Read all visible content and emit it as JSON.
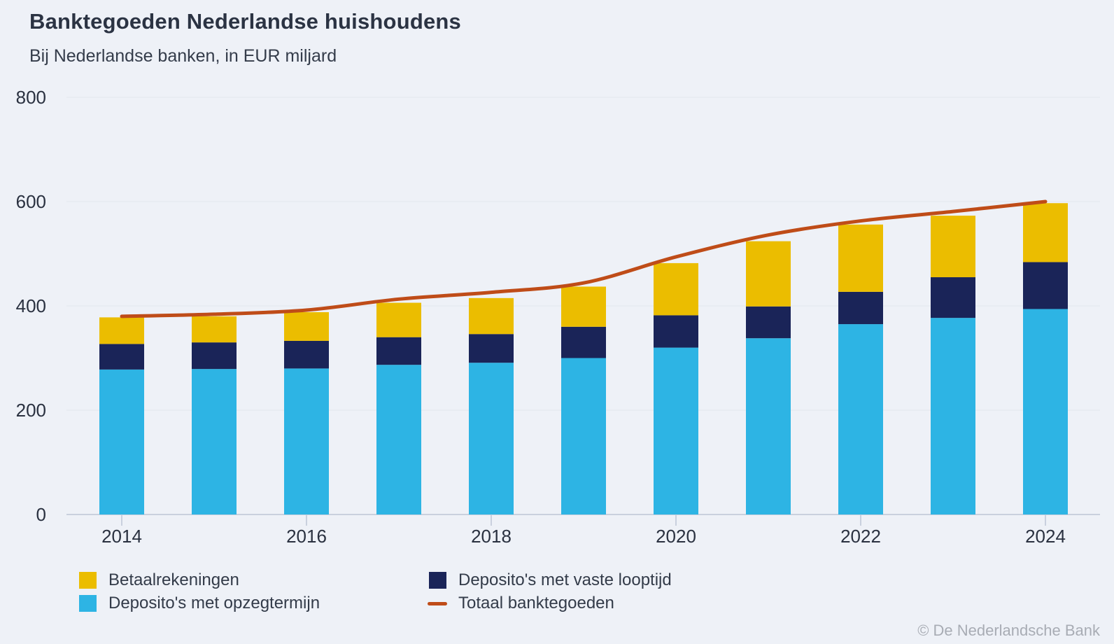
{
  "header": {
    "title": "Banktegoeden Nederlandse huishoudens",
    "subtitle": "Bij Nederlandse banken, in EUR miljard"
  },
  "footer": {
    "copyright": "© De Nederlandsche Bank"
  },
  "theme": {
    "background": "#eef1f7",
    "gridline_color": "#e3e6ec",
    "axis_color": "#c9d0de",
    "axis_text_color": "#2a3140",
    "legend_text_color": "#333b49"
  },
  "chart_data": {
    "type": "bar",
    "subtype": "stacked-bars-with-total-line",
    "title": "Banktegoeden Nederlandse huishoudens",
    "subtitle": "Bij Nederlandse banken, in EUR miljard",
    "xlabel": "",
    "ylabel": "EUR miljard",
    "categories": [
      "2014",
      "2015",
      "2016",
      "2017",
      "2018",
      "2019",
      "2020",
      "2021",
      "2022",
      "2023",
      "2024"
    ],
    "x_tick_labels": [
      "2014",
      "2016",
      "2018",
      "2020",
      "2022",
      "2024"
    ],
    "ylim": [
      0,
      800
    ],
    "yticks": [
      0,
      200,
      400,
      600,
      800
    ],
    "grid": true,
    "legend_position": "bottom",
    "series": [
      {
        "key": "opzegtermijn",
        "name": "Deposito's met opzegtermijn",
        "type": "bar",
        "color": "#2db4e4",
        "values": [
          278,
          279,
          280,
          287,
          291,
          300,
          320,
          338,
          365,
          377,
          394
        ]
      },
      {
        "key": "vaste-looptijd",
        "name": "Deposito's met vaste looptijd",
        "type": "bar",
        "color": "#1a2458",
        "values": [
          49,
          51,
          53,
          53,
          55,
          60,
          62,
          61,
          62,
          78,
          90
        ]
      },
      {
        "key": "betaalrekeningen",
        "name": "Betaalrekeningen",
        "type": "bar",
        "color": "#ebbd00",
        "values": [
          51,
          50,
          55,
          66,
          69,
          77,
          100,
          125,
          129,
          118,
          113
        ]
      },
      {
        "key": "totaal",
        "name": "Totaal banktegoeden",
        "type": "line",
        "color": "#bf4c18",
        "values": [
          380,
          384,
          392,
          413,
          426,
          444,
          494,
          536,
          563,
          581,
          600
        ]
      }
    ],
    "legend_columns": [
      [
        "betaalrekeningen",
        "opzegtermijn"
      ],
      [
        "vaste-looptijd",
        "totaal"
      ]
    ]
  }
}
